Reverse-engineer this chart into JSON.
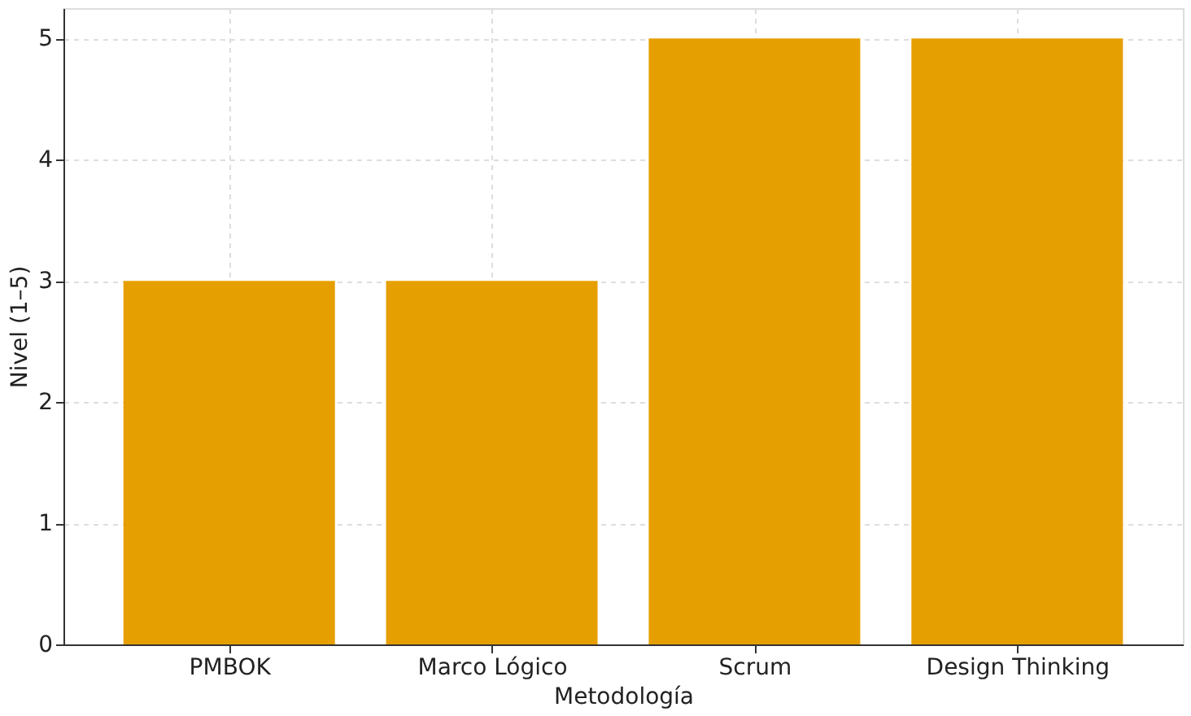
{
  "chart_data": {
    "type": "bar",
    "xlabel": "Metodología",
    "ylabel": "Nivel (1–5)",
    "categories": [
      "PMBOK",
      "Marco Lógico",
      "Scrum",
      "Design Thinking"
    ],
    "values": [
      3,
      3,
      5,
      5
    ],
    "color": "#e69f00",
    "ylim": [
      0,
      5.25
    ],
    "yticks": [
      0,
      1,
      2,
      3,
      4,
      5
    ],
    "grid": true
  }
}
